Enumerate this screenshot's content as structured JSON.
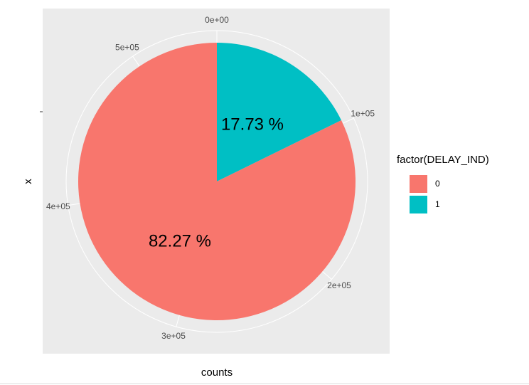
{
  "chart_data": {
    "type": "pie",
    "x_label": "counts",
    "y_label": "x",
    "categories": [
      "0",
      "1"
    ],
    "values": [
      454130,
      97870
    ],
    "value_labels": [
      "82.27 %",
      "17.73 %"
    ],
    "colors": [
      "#F8766D",
      "#00BFC4"
    ],
    "legend_title": "factor(DELAY_IND)",
    "legend": "right",
    "xlim": [
      0,
      552000
    ],
    "xticks": [
      {
        "value": 0,
        "label": "0e+00"
      },
      {
        "value": 100000,
        "label": "1e+05"
      },
      {
        "value": 200000,
        "label": "2e+05"
      },
      {
        "value": 300000,
        "label": "3e+05"
      },
      {
        "value": 400000,
        "label": "4e+05"
      },
      {
        "value": 500000,
        "label": "5e+05"
      }
    ],
    "grid": true
  }
}
